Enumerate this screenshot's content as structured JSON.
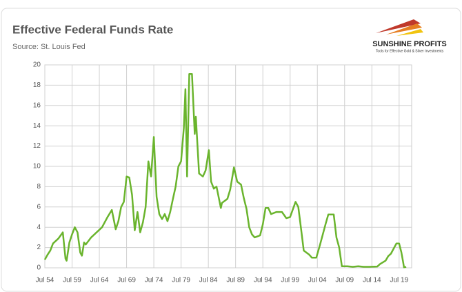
{
  "chart_data": {
    "type": "line",
    "title": "Effective Federal Funds Rate",
    "subtitle": "Source: St. Louis Fed",
    "logo": {
      "name": "SUNSHINE PROFITS",
      "tagline": "Tools for Effective Gold & Silver Investments"
    },
    "x": [
      1954.5,
      1955,
      1955.5,
      1956,
      1957,
      1957.8,
      1958.3,
      1958.5,
      1959,
      1959.5,
      1960,
      1960.5,
      1961,
      1961.3,
      1961.7,
      1962,
      1963,
      1964,
      1965,
      1966,
      1966.8,
      1967.5,
      1968,
      1968.5,
      1969,
      1969.5,
      1970,
      1970.5,
      1971,
      1971.5,
      1972,
      1972.5,
      1973,
      1973.5,
      1974,
      1974.5,
      1975,
      1975.5,
      1976,
      1976.5,
      1977,
      1977.5,
      1978,
      1978.5,
      1979,
      1979.5,
      1980,
      1980.3,
      1980.6,
      1981,
      1981.5,
      1982,
      1982.2,
      1982.8,
      1983.5,
      1984,
      1984.6,
      1985,
      1985.5,
      1986,
      1986.8,
      1987,
      1987.5,
      1988,
      1988.5,
      1989.2,
      1989.8,
      1990.5,
      1991,
      1991.5,
      1992,
      1992.5,
      1993,
      1994,
      1994.5,
      1995,
      1995.5,
      1996,
      1997,
      1998,
      1998.8,
      1999.5,
      2000.5,
      2001,
      2001.5,
      2002,
      2003,
      2003.5,
      2004.3,
      2005,
      2006,
      2006.5,
      2007.5,
      2008,
      2008.5,
      2009,
      2010,
      2011,
      2012,
      2013,
      2014,
      2015.5,
      2016,
      2017,
      2017.5,
      2018,
      2018.5,
      2019,
      2019.5,
      2019.9,
      2020.2,
      2020.4,
      2020.8
    ],
    "series": [
      {
        "name": "Effective Federal Funds Rate",
        "color": "#6ab42d",
        "values": [
          0.8,
          1.3,
          1.7,
          2.4,
          2.9,
          3.5,
          0.9,
          0.7,
          2.5,
          3.3,
          4.0,
          3.5,
          1.5,
          1.2,
          2.5,
          2.3,
          3.0,
          3.5,
          4.0,
          5.0,
          5.7,
          3.8,
          4.6,
          6.0,
          6.5,
          9.0,
          8.9,
          7.2,
          3.7,
          5.5,
          3.5,
          4.5,
          6.0,
          10.5,
          9.0,
          12.9,
          7.0,
          5.3,
          4.8,
          5.3,
          4.6,
          5.5,
          6.8,
          8.0,
          10.0,
          10.5,
          13.8,
          17.6,
          9.0,
          19.1,
          19.1,
          13.2,
          14.9,
          9.3,
          9.0,
          9.6,
          11.6,
          8.5,
          7.8,
          8.0,
          5.9,
          6.4,
          6.6,
          6.8,
          7.7,
          9.9,
          8.5,
          8.2,
          6.9,
          5.8,
          4.0,
          3.3,
          3.0,
          3.2,
          4.3,
          5.9,
          5.9,
          5.3,
          5.5,
          5.5,
          4.9,
          5.0,
          6.5,
          6.0,
          3.9,
          1.7,
          1.3,
          1.0,
          1.0,
          2.3,
          4.3,
          5.25,
          5.25,
          3.0,
          2.0,
          0.15,
          0.15,
          0.1,
          0.15,
          0.1,
          0.1,
          0.13,
          0.38,
          0.7,
          1.15,
          1.4,
          1.9,
          2.4,
          2.4,
          1.55,
          0.65,
          0.05,
          0.09
        ]
      }
    ],
    "xlim": [
      1954.5,
      2021.8
    ],
    "xticks": [
      {
        "value": 1954.5,
        "label": "Jul 54"
      },
      {
        "value": 1959.5,
        "label": "Jul 59"
      },
      {
        "value": 1964.5,
        "label": "Jul 64"
      },
      {
        "value": 1969.5,
        "label": "Jul 69"
      },
      {
        "value": 1974.5,
        "label": "Jul 74"
      },
      {
        "value": 1979.5,
        "label": "Jul 79"
      },
      {
        "value": 1984.5,
        "label": "Jul 84"
      },
      {
        "value": 1989.5,
        "label": "Jul 89"
      },
      {
        "value": 1994.5,
        "label": "Jul 94"
      },
      {
        "value": 1999.5,
        "label": "Jul 99"
      },
      {
        "value": 2004.5,
        "label": "Jul 04"
      },
      {
        "value": 2009.5,
        "label": "Jul 09"
      },
      {
        "value": 2014.5,
        "label": "Jul 14"
      },
      {
        "value": 2019.5,
        "label": "Jul 19"
      }
    ],
    "ylim": [
      0,
      20
    ],
    "yticks": [
      0,
      2,
      4,
      6,
      8,
      10,
      12,
      14,
      16,
      18,
      20
    ],
    "grid": true
  }
}
